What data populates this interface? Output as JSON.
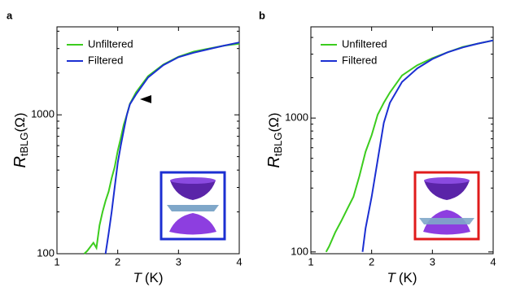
{
  "chart_data": [
    {
      "type": "line",
      "panel_label": "a",
      "x_label": "T",
      "x_label_unit": "(K)",
      "y_label": "R",
      "y_label_sub": "tBLG",
      "y_label_unit": "(Ω)",
      "xlim": [
        1,
        4
      ],
      "xticks": [
        1,
        2,
        3,
        4
      ],
      "ylim": [
        100,
        4300
      ],
      "yticks": [
        100,
        1000
      ],
      "log_y": true,
      "grid": false,
      "legend": "upper left",
      "series": [
        {
          "name": "Unfiltered",
          "color": "#3ccc1e",
          "x": [
            1.45,
            1.5,
            1.6,
            1.65,
            1.7,
            1.75,
            1.8,
            1.85,
            1.9,
            1.95,
            2.0,
            2.05,
            2.1,
            2.15,
            2.2,
            2.3,
            2.5,
            2.75,
            3.0,
            3.25,
            3.5,
            3.75,
            4.0
          ],
          "values": [
            100,
            105,
            120,
            110,
            160,
            200,
            240,
            280,
            350,
            420,
            550,
            680,
            850,
            1000,
            1200,
            1450,
            1900,
            2300,
            2620,
            2850,
            3000,
            3150,
            3250
          ]
        },
        {
          "name": "Filtered",
          "color": "#1b2fd2",
          "x": [
            1.8,
            1.85,
            1.9,
            1.95,
            2.0,
            2.05,
            2.1,
            2.15,
            2.2,
            2.3,
            2.5,
            2.75,
            3.0,
            3.25,
            3.5,
            3.75,
            4.0
          ],
          "values": [
            100,
            140,
            200,
            300,
            452,
            600,
            775,
            1000,
            1190,
            1400,
            1860,
            2280,
            2600,
            2800,
            2970,
            3150,
            3320
          ]
        }
      ]
    },
    {
      "type": "line",
      "panel_label": "b",
      "x_label": "T",
      "x_label_unit": "(K)",
      "y_label": "R",
      "y_label_sub": "tBLG",
      "y_label_unit": "(Ω)",
      "xlim": [
        1,
        4
      ],
      "xticks": [
        1,
        2,
        3,
        4
      ],
      "ylim": [
        97,
        4800
      ],
      "yticks": [
        100,
        1000
      ],
      "log_y": true,
      "grid": false,
      "legend": "upper left",
      "series": [
        {
          "name": "Unfiltered",
          "color": "#3ccc1e",
          "x": [
            1.25,
            1.3,
            1.4,
            1.5,
            1.6,
            1.7,
            1.8,
            1.9,
            2.0,
            2.1,
            2.2,
            2.3,
            2.5,
            2.75,
            3.0,
            3.25,
            3.5,
            3.75,
            4.0
          ],
          "values": [
            100,
            110,
            140,
            170,
            210,
            258,
            370,
            560,
            745,
            1060,
            1300,
            1550,
            2080,
            2480,
            2800,
            3100,
            3400,
            3600,
            3800
          ]
        },
        {
          "name": "Filtered",
          "color": "#1b2fd2",
          "x": [
            1.85,
            1.9,
            2.0,
            2.1,
            2.2,
            2.3,
            2.5,
            2.75,
            3.0,
            3.25,
            3.5,
            3.75,
            4.0
          ],
          "values": [
            100,
            150,
            258,
            486,
            920,
            1300,
            1860,
            2350,
            2760,
            3100,
            3370,
            3600,
            3800
          ]
        }
      ]
    }
  ]
}
